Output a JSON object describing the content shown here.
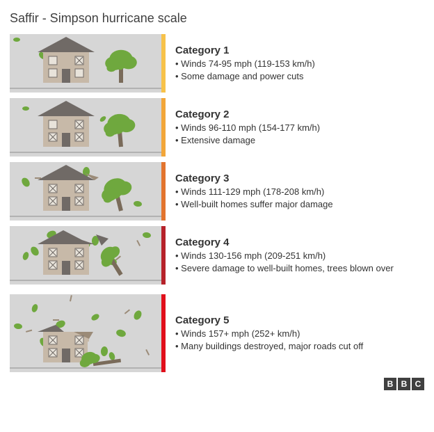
{
  "title": "Saffir - Simpson hurricane scale",
  "illus_bg": "#d6d6d6",
  "house_wall": "#c7b9a8",
  "house_roof": "#706a66",
  "window_fill": "#e8e3da",
  "leaf_color": "#6fa83e",
  "trunk_color": "#7a6b5a",
  "debris_color": "#9b8b78",
  "ground_color": "#8f8f8f",
  "text_color": "#333333",
  "footer_logo": [
    "B",
    "B",
    "C"
  ],
  "categories": [
    {
      "title": "Category 1",
      "bar_color": "#f7c24a",
      "bullets": [
        "Winds 74-95 mph (119-153 km/h)",
        "Some damage and power cuts"
      ],
      "tall": false
    },
    {
      "title": "Category 2",
      "bar_color": "#f2a63a",
      "bullets": [
        "Winds 96-110 mph (154-177 km/h)",
        "Extensive damage"
      ],
      "tall": false
    },
    {
      "title": "Category 3",
      "bar_color": "#e2742e",
      "bullets": [
        "Winds 111-129 mph (178-208 km/h)",
        "Well-built homes suffer major damage"
      ],
      "tall": false
    },
    {
      "title": "Category 4",
      "bar_color": "#b6222a",
      "bullets": [
        "Winds 130-156 mph (209-251 km/h)",
        "Severe damage to well-built homes, trees blown over"
      ],
      "tall": false
    },
    {
      "title": "Category 5",
      "bar_color": "#e10f1b",
      "bullets": [
        "Winds 157+ mph (252+ km/h)",
        "Many buildings destroyed, major roads cut off"
      ],
      "tall": true
    }
  ]
}
